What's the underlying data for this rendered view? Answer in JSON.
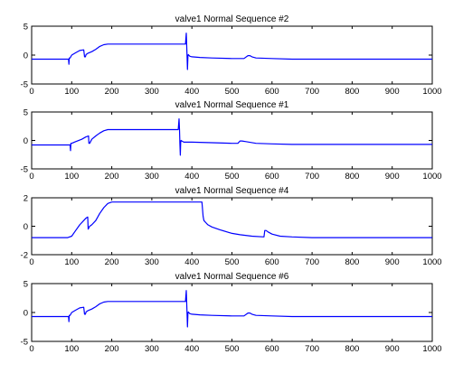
{
  "chart_data": [
    {
      "type": "line",
      "title": "valve1 Normal Sequence #2",
      "xlim": [
        0,
        1000
      ],
      "ylim": [
        -5,
        5
      ],
      "xticks": [
        "0",
        "100",
        "200",
        "300",
        "400",
        "500",
        "600",
        "700",
        "800",
        "900",
        "1000"
      ],
      "yticks": [
        "5",
        "0",
        "-5"
      ],
      "line_color": "#0000ff",
      "grid": false,
      "x": [
        0,
        92,
        93,
        94,
        95,
        96,
        100,
        110,
        120,
        130,
        132,
        134,
        136,
        140,
        150,
        160,
        170,
        180,
        190,
        200,
        250,
        300,
        350,
        384,
        386,
        387,
        388,
        389,
        390,
        391,
        392,
        395,
        400,
        420,
        450,
        500,
        530,
        540,
        545,
        550,
        560,
        600,
        650,
        700,
        800,
        900,
        1000
      ],
      "y": [
        -0.7,
        -0.7,
        -1.6,
        -0.5,
        -0.5,
        -0.5,
        0.0,
        0.4,
        0.8,
        0.9,
        -0.3,
        -0.3,
        0.1,
        0.3,
        0.6,
        1.0,
        1.5,
        1.8,
        1.9,
        1.9,
        1.9,
        1.9,
        1.9,
        1.9,
        3.8,
        1.9,
        -0.4,
        -2.5,
        -0.2,
        0.1,
        0.0,
        -0.2,
        -0.3,
        -0.4,
        -0.5,
        -0.6,
        -0.6,
        -0.1,
        -0.1,
        -0.3,
        -0.5,
        -0.6,
        -0.7,
        -0.7,
        -0.7,
        -0.7,
        -0.7
      ]
    },
    {
      "type": "line",
      "title": "valve1 Normal Sequence #1",
      "xlim": [
        0,
        1000
      ],
      "ylim": [
        -5,
        5
      ],
      "xticks": [
        "0",
        "100",
        "200",
        "300",
        "400",
        "500",
        "600",
        "700",
        "800",
        "900",
        "1000"
      ],
      "yticks": [
        "5",
        "0",
        "-5"
      ],
      "line_color": "#0000ff",
      "grid": false,
      "x": [
        0,
        96,
        97,
        98,
        99,
        100,
        110,
        125,
        135,
        142,
        143,
        145,
        150,
        160,
        170,
        180,
        190,
        200,
        250,
        300,
        350,
        366,
        368,
        369,
        370,
        371,
        372,
        373,
        375,
        380,
        400,
        450,
        500,
        515,
        520,
        525,
        535,
        560,
        600,
        650,
        700,
        800,
        900,
        1000
      ],
      "y": [
        -0.8,
        -0.8,
        -1.8,
        -0.5,
        -0.5,
        -0.5,
        -0.2,
        0.2,
        0.6,
        0.8,
        -0.5,
        -0.5,
        0.2,
        0.8,
        1.3,
        1.7,
        1.9,
        1.9,
        1.9,
        1.9,
        1.9,
        1.9,
        3.8,
        1.9,
        -0.4,
        -2.6,
        -0.4,
        0.0,
        -0.1,
        -0.3,
        -0.3,
        -0.4,
        -0.5,
        -0.5,
        -0.1,
        -0.1,
        -0.2,
        -0.5,
        -0.6,
        -0.7,
        -0.7,
        -0.7,
        -0.7,
        -0.7
      ]
    },
    {
      "type": "line",
      "title": "valve1 Normal Sequence #4",
      "xlim": [
        0,
        1000
      ],
      "ylim": [
        -2,
        2
      ],
      "xticks": [
        "0",
        "100",
        "200",
        "300",
        "400",
        "500",
        "600",
        "700",
        "800",
        "900",
        "1000"
      ],
      "yticks": [
        "2",
        "0",
        "-2"
      ],
      "line_color": "#0000ff",
      "grid": false,
      "x": [
        0,
        90,
        100,
        110,
        120,
        130,
        135,
        140,
        141,
        143,
        145,
        150,
        160,
        170,
        180,
        190,
        200,
        250,
        300,
        350,
        400,
        425,
        428,
        430,
        435,
        440,
        450,
        470,
        500,
        520,
        550,
        580,
        582,
        585,
        590,
        600,
        620,
        650,
        700,
        800,
        900,
        1000
      ],
      "y": [
        -0.8,
        -0.8,
        -0.7,
        -0.3,
        0.1,
        0.4,
        0.55,
        0.65,
        -0.2,
        -0.1,
        0.0,
        0.1,
        0.4,
        0.9,
        1.3,
        1.6,
        1.7,
        1.7,
        1.7,
        1.7,
        1.7,
        1.7,
        0.7,
        0.4,
        0.25,
        0.1,
        -0.05,
        -0.25,
        -0.5,
        -0.6,
        -0.7,
        -0.75,
        -0.3,
        -0.3,
        -0.4,
        -0.55,
        -0.7,
        -0.75,
        -0.8,
        -0.8,
        -0.8,
        -0.8
      ]
    },
    {
      "type": "line",
      "title": "valve1 Normal Sequence #6",
      "xlim": [
        0,
        1000
      ],
      "ylim": [
        -5,
        5
      ],
      "xticks": [
        "0",
        "100",
        "200",
        "300",
        "400",
        "500",
        "600",
        "700",
        "800",
        "900",
        "1000"
      ],
      "yticks": [
        "5",
        "0",
        "-5"
      ],
      "line_color": "#0000ff",
      "grid": false,
      "x": [
        0,
        92,
        93,
        94,
        95,
        96,
        100,
        110,
        120,
        130,
        132,
        134,
        136,
        140,
        150,
        160,
        170,
        180,
        190,
        200,
        250,
        300,
        350,
        384,
        386,
        387,
        388,
        389,
        390,
        391,
        392,
        395,
        400,
        420,
        450,
        500,
        530,
        540,
        545,
        550,
        560,
        600,
        650,
        700,
        800,
        900,
        1000
      ],
      "y": [
        -0.7,
        -0.7,
        -1.6,
        -0.5,
        -0.5,
        -0.5,
        0.0,
        0.4,
        0.8,
        0.9,
        -0.3,
        -0.3,
        0.1,
        0.3,
        0.6,
        1.0,
        1.5,
        1.8,
        1.9,
        1.9,
        1.9,
        1.9,
        1.9,
        1.9,
        3.8,
        1.9,
        -0.4,
        -2.5,
        -0.2,
        0.1,
        0.0,
        -0.2,
        -0.3,
        -0.4,
        -0.5,
        -0.6,
        -0.6,
        -0.1,
        -0.1,
        -0.3,
        -0.5,
        -0.6,
        -0.7,
        -0.7,
        -0.7,
        -0.7,
        -0.7
      ]
    }
  ]
}
